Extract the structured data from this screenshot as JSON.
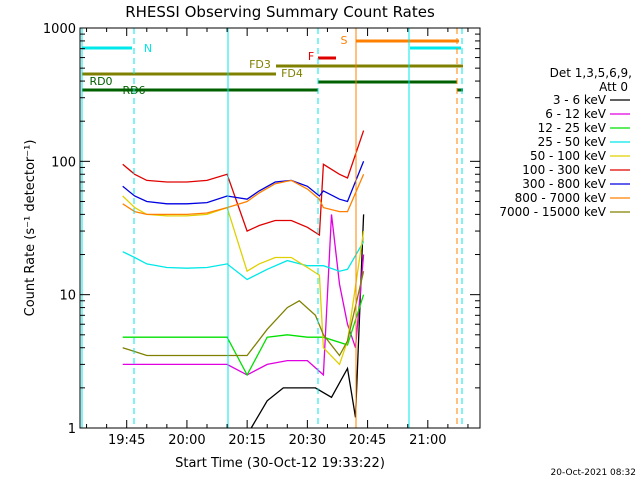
{
  "chart_data": {
    "type": "line",
    "title": "RHESSI Observing Summary Count Rates",
    "xlabel": "Start Time (30-Oct-12 19:33:22)",
    "ylabel": "Count Rate (s⁻¹ detector⁻¹)",
    "y_scale": "log",
    "ylim": [
      1,
      1000
    ],
    "xlim": [
      "19:33:22",
      "21:13:00"
    ],
    "x_ticks": [
      "19:45",
      "20:00",
      "20:15",
      "20:30",
      "20:45",
      "21:00"
    ],
    "y_ticks": [
      "1",
      "10",
      "100",
      "1000"
    ],
    "grid": false,
    "legend_position": "right",
    "footer_date": "20-Oct-2021 08:32",
    "legend": {
      "header": "Det 1,3,5,6,9,",
      "att": "Att 0"
    },
    "series": [
      {
        "name": "3 - 6 keV",
        "color": "#000000",
        "x": [
          "20:16",
          "20:20",
          "20:24",
          "20:28",
          "20:32",
          "20:36",
          "20:40",
          "20:42",
          "20:44"
        ],
        "y": [
          1.0,
          1.6,
          2.0,
          2.0,
          2.0,
          1.7,
          2.8,
          1.2,
          40
        ]
      },
      {
        "name": "6 - 12 keV",
        "color": "#e000e0",
        "x": [
          "19:44",
          "19:50",
          "19:55",
          "20:00",
          "20:05",
          "20:10",
          "20:15",
          "20:20",
          "20:25",
          "20:30",
          "20:34",
          "20:36",
          "20:38",
          "20:40",
          "20:42",
          "20:44"
        ],
        "y": [
          3.0,
          3.0,
          3.0,
          3.0,
          3.0,
          3.0,
          2.5,
          3.0,
          3.2,
          3.2,
          2.5,
          40,
          12,
          6,
          4,
          20
        ]
      },
      {
        "name": "12 - 25 keV",
        "color": "#00e000",
        "x": [
          "19:44",
          "19:50",
          "19:55",
          "20:00",
          "20:05",
          "20:10",
          "20:15",
          "20:20",
          "20:25",
          "20:30",
          "20:34",
          "20:40",
          "20:44"
        ],
        "y": [
          4.8,
          4.8,
          4.8,
          4.8,
          4.8,
          4.8,
          2.5,
          4.8,
          5.0,
          4.8,
          4.8,
          4.2,
          10
        ]
      },
      {
        "name": "25 - 50 keV",
        "color": "#00e8e8",
        "x": [
          "19:44",
          "19:47",
          "19:50",
          "19:55",
          "20:00",
          "20:05",
          "20:10",
          "20:15",
          "20:20",
          "20:25",
          "20:30",
          "20:34",
          "20:38",
          "20:40",
          "20:44"
        ],
        "y": [
          21,
          19,
          17,
          16,
          15.8,
          16,
          17,
          13,
          15.5,
          18,
          16.5,
          16.5,
          15,
          15.5,
          25
        ]
      },
      {
        "name": "50 - 100 keV",
        "color": "#e0d000",
        "x": [
          "19:44",
          "19:47",
          "19:50",
          "19:55",
          "20:00",
          "20:05",
          "20:10",
          "20:15",
          "20:18",
          "20:22",
          "20:26",
          "20:30",
          "20:33",
          "20:34",
          "20:38",
          "20:40",
          "20:44"
        ],
        "y": [
          55,
          45,
          40,
          39,
          39,
          40,
          45,
          15,
          17,
          19,
          19,
          16,
          14,
          4,
          3,
          4.5,
          30
        ]
      },
      {
        "name": "100 - 300 keV",
        "color": "#e00000",
        "x": [
          "19:44",
          "19:47",
          "19:50",
          "19:55",
          "20:00",
          "20:05",
          "20:10",
          "20:15",
          "20:18",
          "20:22",
          "20:26",
          "20:30",
          "20:33",
          "20:34",
          "20:38",
          "20:40",
          "20:44"
        ],
        "y": [
          95,
          80,
          72,
          70,
          70,
          72,
          80,
          30,
          33,
          36,
          36,
          32,
          28,
          95,
          80,
          75,
          170
        ]
      },
      {
        "name": "300 - 800 keV",
        "color": "#0000e0",
        "x": [
          "19:44",
          "19:47",
          "19:50",
          "19:55",
          "20:00",
          "20:05",
          "20:10",
          "20:15",
          "20:18",
          "20:22",
          "20:26",
          "20:30",
          "20:33",
          "20:34",
          "20:38",
          "20:40",
          "20:44"
        ],
        "y": [
          65,
          55,
          50,
          48,
          48,
          49,
          55,
          52,
          60,
          70,
          72,
          65,
          55,
          60,
          52,
          50,
          100
        ]
      },
      {
        "name": "800 - 7000 keV",
        "color": "#ff8000",
        "x": [
          "19:44",
          "19:47",
          "19:50",
          "19:55",
          "20:00",
          "20:05",
          "20:10",
          "20:15",
          "20:18",
          "20:22",
          "20:26",
          "20:30",
          "20:33",
          "20:34",
          "20:38",
          "20:40",
          "20:44"
        ],
        "y": [
          48,
          42,
          40,
          40,
          40,
          41,
          45,
          50,
          58,
          68,
          72,
          62,
          52,
          45,
          42,
          42,
          80
        ]
      },
      {
        "name": "7000 - 15000 keV",
        "color": "#808000",
        "x": [
          "19:44",
          "19:50",
          "19:55",
          "20:00",
          "20:05",
          "20:10",
          "20:15",
          "20:20",
          "20:25",
          "20:28",
          "20:32",
          "20:34",
          "20:38",
          "20:40",
          "20:44"
        ],
        "y": [
          4,
          3.5,
          3.5,
          3.5,
          3.5,
          3.5,
          3.5,
          5.5,
          8,
          9,
          7,
          5,
          3.5,
          4.5,
          15
        ]
      }
    ],
    "annotations": [
      {
        "label": "N",
        "color": "#00e8e8"
      },
      {
        "label": "S",
        "color": "#ff8000"
      },
      {
        "label": "F",
        "color": "#e00000"
      },
      {
        "label": "FD3",
        "color": "#808000"
      },
      {
        "label": "FD4",
        "color": "#808000"
      },
      {
        "label": "RD0",
        "color": "#006000"
      },
      {
        "label": "RD6",
        "color": "#006000"
      }
    ]
  }
}
